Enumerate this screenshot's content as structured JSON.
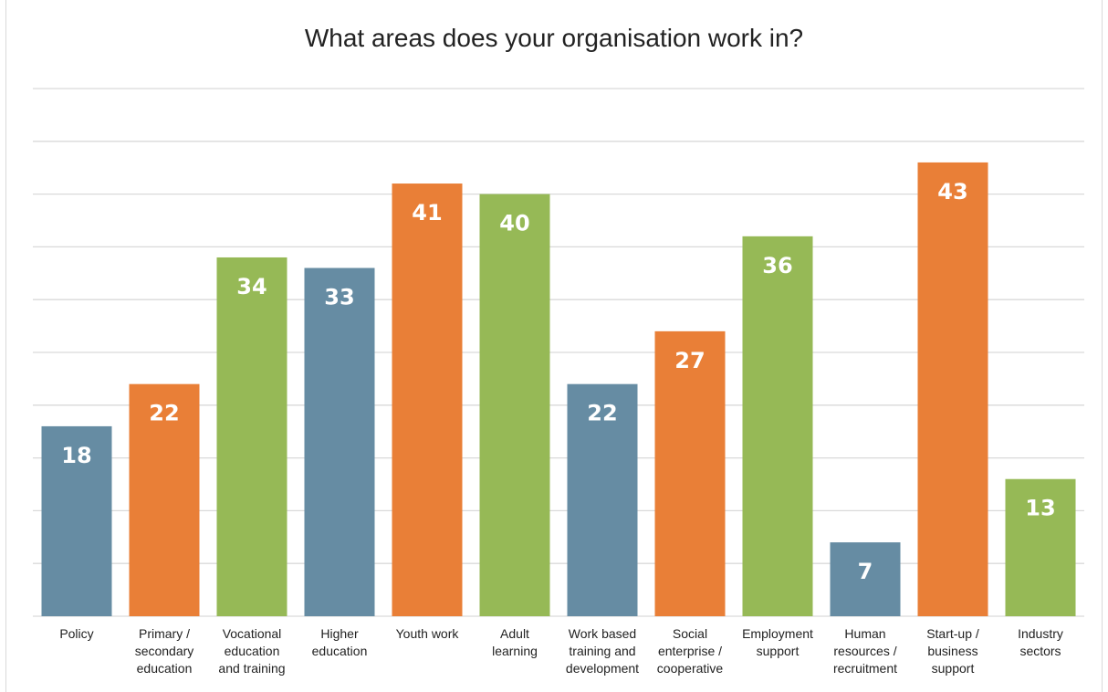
{
  "chart_data": {
    "type": "bar",
    "title": "What areas does your organisation work in?",
    "categories": [
      [
        "Policy"
      ],
      [
        "Primary /",
        "secondary",
        "education"
      ],
      [
        "Vocational",
        "education",
        "and training"
      ],
      [
        "Higher",
        "education"
      ],
      [
        "Youth work"
      ],
      [
        "Adult",
        "learning"
      ],
      [
        "Work based",
        "training and",
        "development"
      ],
      [
        "Social",
        "enterprise /",
        "cooperative"
      ],
      [
        "Employment",
        "support"
      ],
      [
        "Human",
        "resources /",
        "recruitment"
      ],
      [
        "Start-up /",
        "business",
        "support"
      ],
      [
        "Industry",
        "sectors"
      ]
    ],
    "values": [
      18,
      22,
      34,
      33,
      41,
      40,
      22,
      27,
      36,
      7,
      43,
      13
    ],
    "colors": [
      "#668ca3",
      "#e97f37",
      "#96b956",
      "#668ca3",
      "#e97f37",
      "#96b956",
      "#668ca3",
      "#e97f37",
      "#96b956",
      "#668ca3",
      "#e97f37",
      "#96b956"
    ],
    "ylim": [
      0,
      50
    ],
    "grid": true,
    "legend": false
  }
}
